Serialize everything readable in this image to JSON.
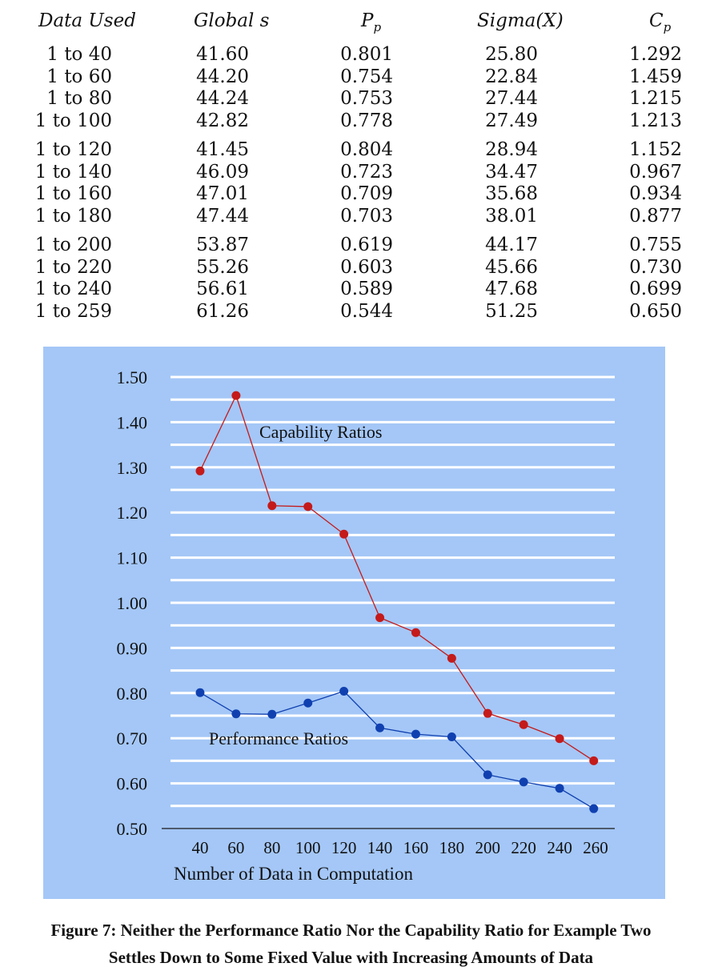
{
  "table": {
    "headers": [
      {
        "main": "Data Used",
        "sub": ""
      },
      {
        "main": "Global s",
        "sub": ""
      },
      {
        "main": "P",
        "sub": "p"
      },
      {
        "main": "Sigma(X)",
        "sub": ""
      },
      {
        "main": "C",
        "sub": "p"
      }
    ],
    "groups": [
      [
        [
          "1 to 40",
          "41.60",
          "0.801",
          "25.80",
          "1.292"
        ],
        [
          "1 to 60",
          "44.20",
          "0.754",
          "22.84",
          "1.459"
        ],
        [
          "1 to 80",
          "44.24",
          "0.753",
          "27.44",
          "1.215"
        ],
        [
          "1 to 100",
          "42.82",
          "0.778",
          "27.49",
          "1.213"
        ]
      ],
      [
        [
          "1 to 120",
          "41.45",
          "0.804",
          "28.94",
          "1.152"
        ],
        [
          "1 to 140",
          "46.09",
          "0.723",
          "34.47",
          "0.967"
        ],
        [
          "1 to 160",
          "47.01",
          "0.709",
          "35.68",
          "0.934"
        ],
        [
          "1 to 180",
          "47.44",
          "0.703",
          "38.01",
          "0.877"
        ]
      ],
      [
        [
          "1 to 200",
          "53.87",
          "0.619",
          "44.17",
          "0.755"
        ],
        [
          "1 to 220",
          "55.26",
          "0.603",
          "45.66",
          "0.730"
        ],
        [
          "1 to 240",
          "56.61",
          "0.589",
          "47.68",
          "0.699"
        ],
        [
          "1 to 259",
          "61.26",
          "0.544",
          "51.25",
          "0.650"
        ]
      ]
    ]
  },
  "chart_data": {
    "type": "line",
    "x": [
      40,
      60,
      80,
      100,
      120,
      140,
      160,
      180,
      200,
      220,
      240,
      259
    ],
    "x_ticks": [
      "40",
      "60",
      "80",
      "100",
      "120",
      "140",
      "160",
      "180",
      "200",
      "220",
      "240",
      "260"
    ],
    "y_ticks": [
      "0.50",
      "0.60",
      "0.70",
      "0.80",
      "0.90",
      "1.00",
      "1.10",
      "1.20",
      "1.30",
      "1.40",
      "1.50"
    ],
    "xlim": [
      30,
      264
    ],
    "ylim": [
      0.5,
      1.5
    ],
    "xlabel": "Number of Data in Computation",
    "ylabel": "",
    "grid": true,
    "series": [
      {
        "name": "Capability Ratios",
        "color": "#c41a1a",
        "values": [
          1.292,
          1.459,
          1.215,
          1.213,
          1.152,
          0.967,
          0.934,
          0.877,
          0.755,
          0.73,
          0.699,
          0.65
        ]
      },
      {
        "name": "Performance Ratios",
        "color": "#1040b0",
        "values": [
          0.801,
          0.754,
          0.753,
          0.778,
          0.804,
          0.723,
          0.709,
          0.703,
          0.619,
          0.603,
          0.589,
          0.544
        ]
      }
    ]
  },
  "caption": {
    "line1": "Figure 7:  Neither the Performance Ratio Nor the Capability Ratio for Example Two",
    "line2": "Settles Down to Some Fixed Value with Increasing Amounts of Data"
  }
}
